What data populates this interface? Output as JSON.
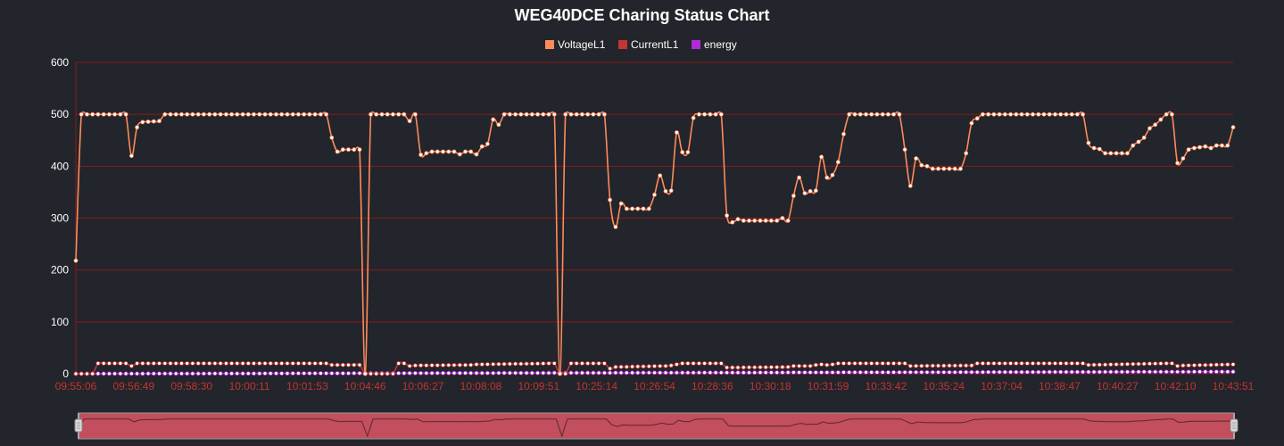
{
  "chart_data": {
    "type": "line",
    "title": "WEG40DCE Charing Status Chart",
    "colors": {
      "background": "#22252b",
      "grid": "#8b1a1a",
      "axis_labels": "#ffffff",
      "x_tick_labels": "#c23531",
      "VoltageL1": "#ff8a5c",
      "CurrentL1": "#c23531",
      "energy": "#b32bd6",
      "marker_fill": "#ffffff",
      "datazoom_fill": "#c24e5e",
      "datazoom_line": "#5a2a2a",
      "datazoom_handle": "#a8a8a8"
    },
    "legend": [
      {
        "name": "VoltageL1",
        "color": "#ff8a5c"
      },
      {
        "name": "CurrentL1",
        "color": "#c23531"
      },
      {
        "name": "energy",
        "color": "#b32bd6"
      }
    ],
    "legend_position": "top-center",
    "ylim": [
      0,
      600
    ],
    "yticks": [
      0,
      100,
      200,
      300,
      400,
      500,
      600
    ],
    "grid": true,
    "x_tick_labels": [
      "09:55:06",
      "09:56:49",
      "09:58:30",
      "10:00:11",
      "10:01:53",
      "10:04:46",
      "10:06:27",
      "10:08:08",
      "10:09:51",
      "10:25:14",
      "10:26:54",
      "10:28:36",
      "10:30:18",
      "10:31:59",
      "10:33:42",
      "10:35:24",
      "10:37:04",
      "10:38:47",
      "10:40:27",
      "10:42:10",
      "10:43:51"
    ],
    "data_zoom": true,
    "voltage_keypoints": [
      [
        0,
        218
      ],
      [
        1,
        500
      ],
      [
        9,
        500
      ],
      [
        10,
        420
      ],
      [
        11,
        475
      ],
      [
        12,
        485
      ],
      [
        15,
        487
      ],
      [
        16,
        500
      ],
      [
        45,
        500
      ],
      [
        46,
        455
      ],
      [
        47,
        428
      ],
      [
        48,
        432
      ],
      [
        51,
        432
      ],
      [
        52,
        0
      ],
      [
        53,
        500
      ],
      [
        59,
        500
      ],
      [
        60,
        487
      ],
      [
        61,
        500
      ],
      [
        62,
        422
      ],
      [
        64,
        428
      ],
      [
        68,
        428
      ],
      [
        69,
        423
      ],
      [
        70,
        428
      ],
      [
        71,
        428
      ],
      [
        72,
        423
      ],
      [
        73,
        438
      ],
      [
        74,
        443
      ],
      [
        75,
        490
      ],
      [
        76,
        480
      ],
      [
        77,
        500
      ],
      [
        86,
        500
      ],
      [
        87,
        0
      ],
      [
        88,
        500
      ],
      [
        95,
        500
      ],
      [
        96,
        335
      ],
      [
        97,
        283
      ],
      [
        98,
        328
      ],
      [
        99,
        318
      ],
      [
        103,
        318
      ],
      [
        104,
        345
      ],
      [
        105,
        382
      ],
      [
        106,
        352
      ],
      [
        107,
        353
      ],
      [
        108,
        465
      ],
      [
        109,
        427
      ],
      [
        110,
        427
      ],
      [
        111,
        493
      ],
      [
        112,
        500
      ],
      [
        116,
        500
      ],
      [
        117,
        305
      ],
      [
        118,
        292
      ],
      [
        119,
        298
      ],
      [
        120,
        295
      ],
      [
        126,
        295
      ],
      [
        127,
        300
      ],
      [
        128,
        295
      ],
      [
        129,
        343
      ],
      [
        130,
        378
      ],
      [
        131,
        348
      ],
      [
        132,
        352
      ],
      [
        133,
        353
      ],
      [
        134,
        418
      ],
      [
        135,
        378
      ],
      [
        136,
        383
      ],
      [
        137,
        408
      ],
      [
        138,
        462
      ],
      [
        139,
        500
      ],
      [
        148,
        500
      ],
      [
        149,
        432
      ],
      [
        150,
        362
      ],
      [
        151,
        415
      ],
      [
        152,
        402
      ],
      [
        153,
        400
      ],
      [
        154,
        395
      ],
      [
        159,
        395
      ],
      [
        160,
        425
      ],
      [
        161,
        483
      ],
      [
        162,
        492
      ],
      [
        163,
        500
      ],
      [
        181,
        500
      ],
      [
        182,
        445
      ],
      [
        183,
        435
      ],
      [
        184,
        433
      ],
      [
        185,
        425
      ],
      [
        189,
        425
      ],
      [
        190,
        440
      ],
      [
        191,
        447
      ],
      [
        192,
        455
      ],
      [
        193,
        473
      ],
      [
        194,
        480
      ],
      [
        195,
        490
      ],
      [
        196,
        500
      ],
      [
        197,
        500
      ],
      [
        198,
        406
      ],
      [
        199,
        415
      ],
      [
        200,
        432
      ],
      [
        201,
        435
      ],
      [
        203,
        438
      ],
      [
        204,
        435
      ],
      [
        205,
        440
      ],
      [
        207,
        440
      ],
      [
        208,
        475
      ]
    ],
    "current_keypoints": [
      [
        0,
        0
      ],
      [
        3,
        0
      ],
      [
        4,
        20
      ],
      [
        9,
        20
      ],
      [
        10,
        15
      ],
      [
        11,
        20
      ],
      [
        45,
        20
      ],
      [
        46,
        17
      ],
      [
        51,
        17
      ],
      [
        52,
        0
      ],
      [
        57,
        0
      ],
      [
        58,
        20
      ],
      [
        59,
        20
      ],
      [
        60,
        15
      ],
      [
        61,
        16
      ],
      [
        71,
        17
      ],
      [
        72,
        18
      ],
      [
        86,
        20
      ],
      [
        87,
        0
      ],
      [
        88,
        0
      ],
      [
        89,
        20
      ],
      [
        94,
        20
      ],
      [
        95,
        20
      ],
      [
        96,
        10
      ],
      [
        97,
        13
      ],
      [
        106,
        15
      ],
      [
        107,
        16
      ],
      [
        108,
        18
      ],
      [
        109,
        20
      ],
      [
        116,
        20
      ],
      [
        117,
        12
      ],
      [
        118,
        12
      ],
      [
        128,
        13
      ],
      [
        129,
        15
      ],
      [
        132,
        15
      ],
      [
        133,
        17
      ],
      [
        134,
        18
      ],
      [
        135,
        17
      ],
      [
        136,
        18
      ],
      [
        137,
        20
      ],
      [
        149,
        20
      ],
      [
        150,
        15
      ],
      [
        161,
        16
      ],
      [
        162,
        20
      ],
      [
        181,
        20
      ],
      [
        182,
        17
      ],
      [
        196,
        20
      ],
      [
        197,
        20
      ],
      [
        198,
        15
      ],
      [
        199,
        16
      ],
      [
        208,
        18
      ]
    ],
    "energy_keypoints": [
      [
        0,
        0
      ],
      [
        208,
        4
      ]
    ]
  }
}
